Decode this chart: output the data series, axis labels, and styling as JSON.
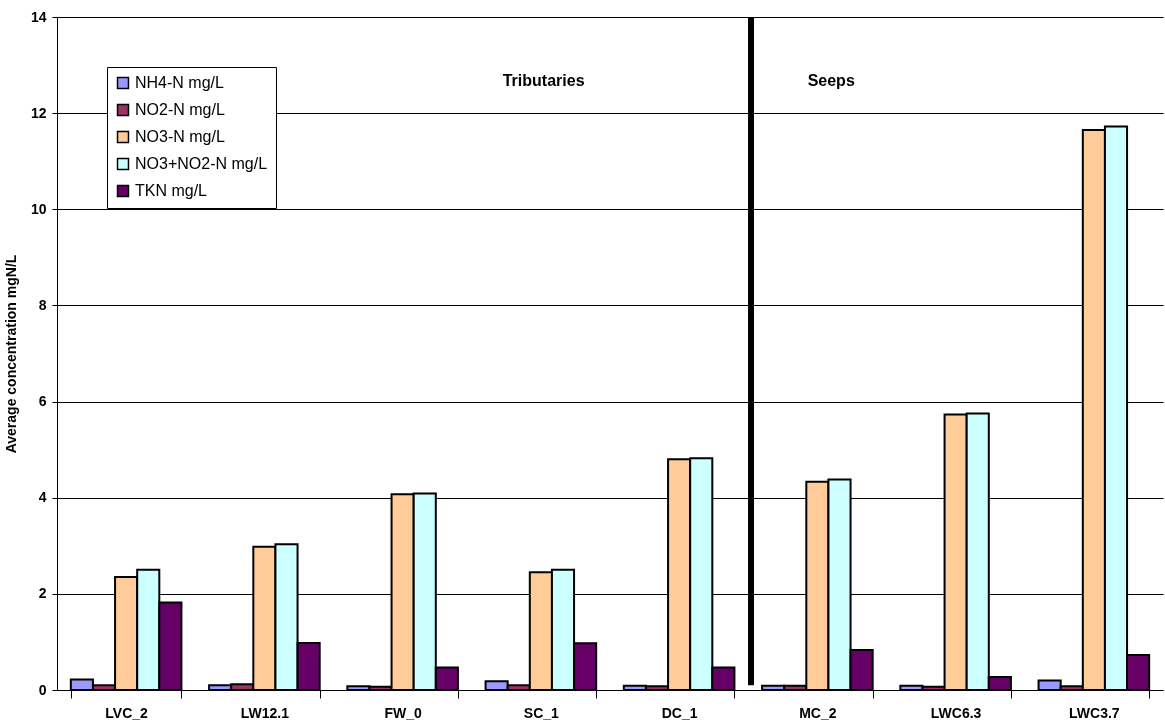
{
  "chart_data": {
    "type": "bar",
    "ylabel": "Average concentration mgN/L",
    "categories": [
      "LVC_2",
      "LW12.1",
      "FW_0",
      "SC_1",
      "DC_1",
      "MC_2",
      "LWC6.3",
      "LWC3.7"
    ],
    "series": [
      {
        "name": "NH4-N mg/L",
        "color": "#9999ff",
        "values": [
          0.22,
          0.1,
          0.08,
          0.18,
          0.09,
          0.09,
          0.09,
          0.2
        ]
      },
      {
        "name": "NO2-N mg/L",
        "color": "#993366",
        "values": [
          0.1,
          0.12,
          0.07,
          0.1,
          0.08,
          0.09,
          0.07,
          0.08
        ]
      },
      {
        "name": "NO3-N mg/L",
        "color": "#ffcc99",
        "values": [
          2.35,
          2.98,
          4.07,
          2.45,
          4.8,
          4.33,
          5.73,
          11.65
        ]
      },
      {
        "name": "NO3+NO2-N mg/L",
        "color": "#ccffff",
        "values": [
          2.5,
          3.03,
          4.09,
          2.5,
          4.82,
          4.38,
          5.75,
          11.72
        ]
      },
      {
        "name": "TKN mg/L",
        "color": "#660066",
        "values": [
          1.82,
          0.98,
          0.47,
          0.97,
          0.47,
          0.83,
          0.27,
          0.73
        ]
      }
    ],
    "ylim": [
      0,
      14
    ],
    "yticks": [
      0,
      2,
      4,
      6,
      8,
      10,
      12,
      14
    ],
    "grid": "y",
    "legend": "top left",
    "ref_lines": [
      {
        "axis": "x",
        "value": "MC_2",
        "color": "#000000"
      }
    ],
    "annotations": [
      "Tributaries",
      "Seeps"
    ]
  }
}
